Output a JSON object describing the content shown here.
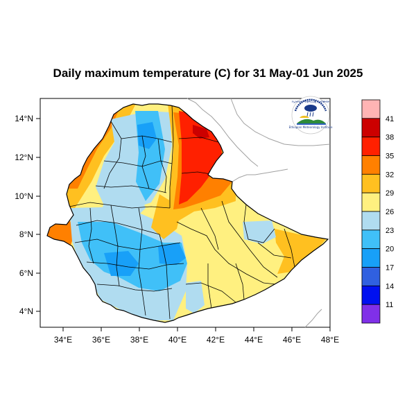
{
  "title": "Daily maximum temperature (C) for 31 May-01 Jun 2025",
  "map": {
    "lon_range": [
      33,
      48.2
    ],
    "lat_range": [
      3.2,
      14.9
    ],
    "x_ticks": [
      "34°E",
      "36°E",
      "38°E",
      "40°E",
      "42°E",
      "44°E",
      "46°E",
      "48°E"
    ],
    "y_ticks": [
      "4°N",
      "6°N",
      "8°N",
      "10°N",
      "12°N",
      "14°N"
    ],
    "border_color": "#000000",
    "neighbor_border_color": "#a0a0a0"
  },
  "colorbar": {
    "labels": [
      "41",
      "38",
      "35",
      "32",
      "29",
      "26",
      "23",
      "20",
      "17",
      "14",
      "11"
    ],
    "colors": [
      "#ffb4b4",
      "#cc0000",
      "#ff2000",
      "#ff8000",
      "#ffc020",
      "#fff080",
      "#b0dcf0",
      "#40c0f8",
      "#18a0f8",
      "#3060e0",
      "#0010f0",
      "#8030e8"
    ]
  },
  "logo": {
    "agency": "Ethiopian Meteorology Institute",
    "agency_amharic": "የኢትዮጵያ ሚቲዎሮሎጂ ኢንስቲትዩት"
  }
}
